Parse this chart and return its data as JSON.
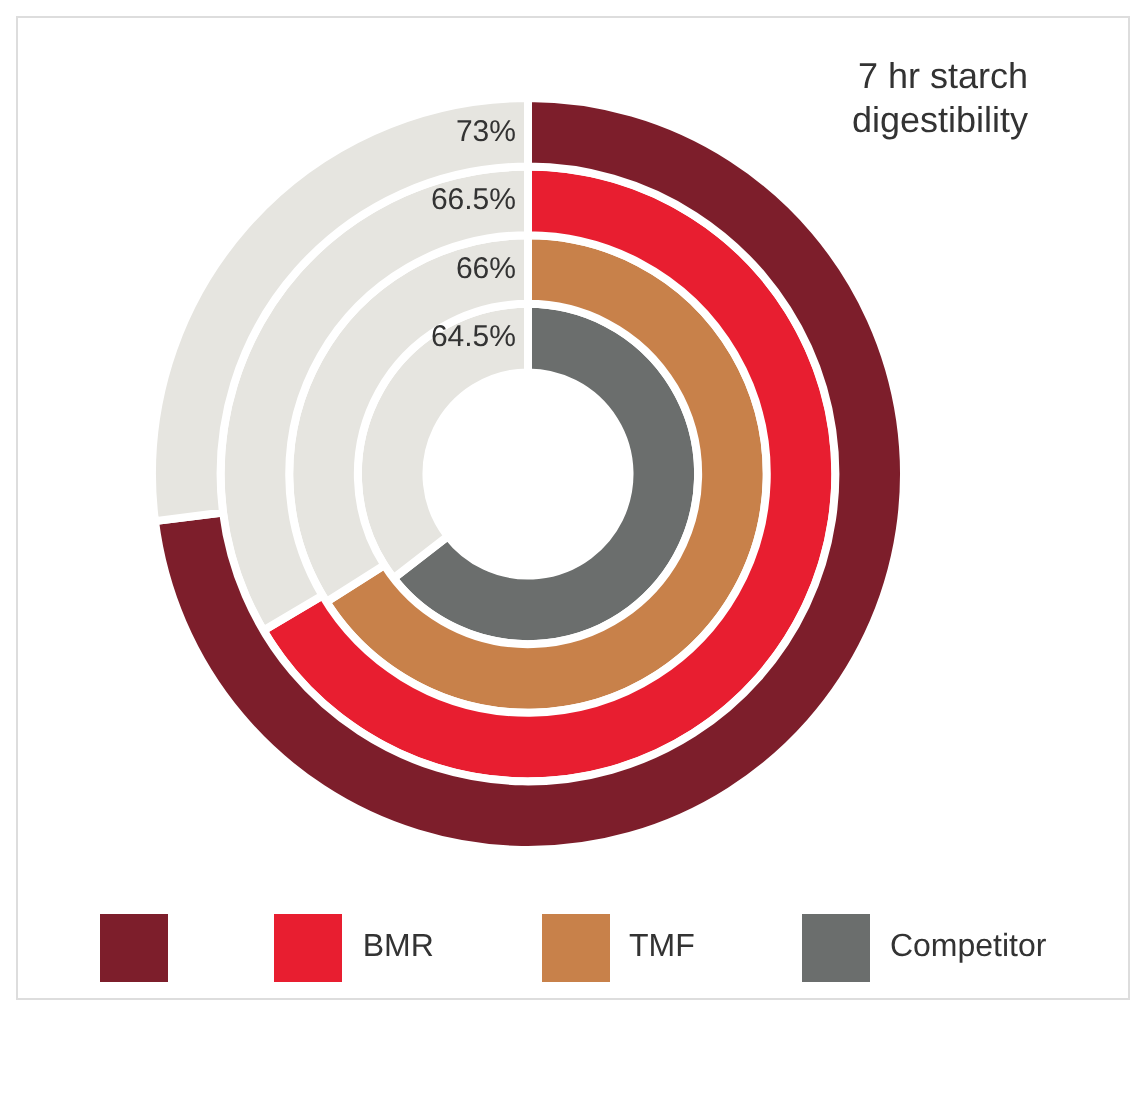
{
  "chart_data": {
    "type": "donut",
    "title": "7 hr starch digestibility",
    "categories": [
      null,
      null
    ],
    "series": [
      {
        "values": [
          73,
          27
        ],
        "colors": [
          "#7d1e2b",
          "#e6e5e0"
        ],
        "color": "#7d1e2b"
      },
      {
        "name": "BMR",
        "values": [
          66.5,
          33.5
        ],
        "colors": [
          "#e81e30",
          "#e6e5e0"
        ],
        "color": "#e81e30"
      },
      {
        "name": "TMF",
        "values": [
          66,
          34
        ],
        "colors": [
          "#c8814a",
          "#e6e5e0"
        ],
        "color": "#c8814a"
      },
      {
        "name": "Competitor",
        "values": [
          64.5,
          35.5
        ],
        "colors": [
          "#6b6e6d",
          "#e6e5e0"
        ],
        "color": "#6b6e6d"
      }
    ],
    "annotations": [
      "73%",
      "66.5%",
      "66%",
      "64.5%"
    ],
    "legend": "bottom"
  }
}
